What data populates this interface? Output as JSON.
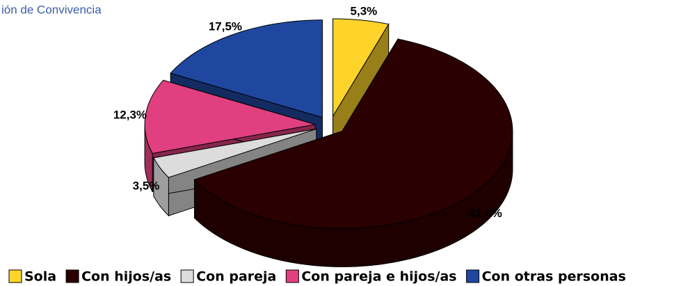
{
  "chart_data": {
    "type": "pie3d",
    "title": "ión de Convivencia",
    "categories": [
      "Sola",
      "Con hijos/as",
      "Con pareja",
      "Con pareja e hijos/as",
      "Con otras personas"
    ],
    "values": [
      5.3,
      61.4,
      3.5,
      12.3,
      17.5
    ],
    "value_labels": [
      "5,3%",
      "61,4%",
      "3,5%",
      "12,3%",
      "17,5%"
    ],
    "colors": [
      "#ffd42a",
      "#2a0000",
      "#dcdcdc",
      "#e0407f",
      "#1f47a0"
    ],
    "legend": "bottom"
  }
}
